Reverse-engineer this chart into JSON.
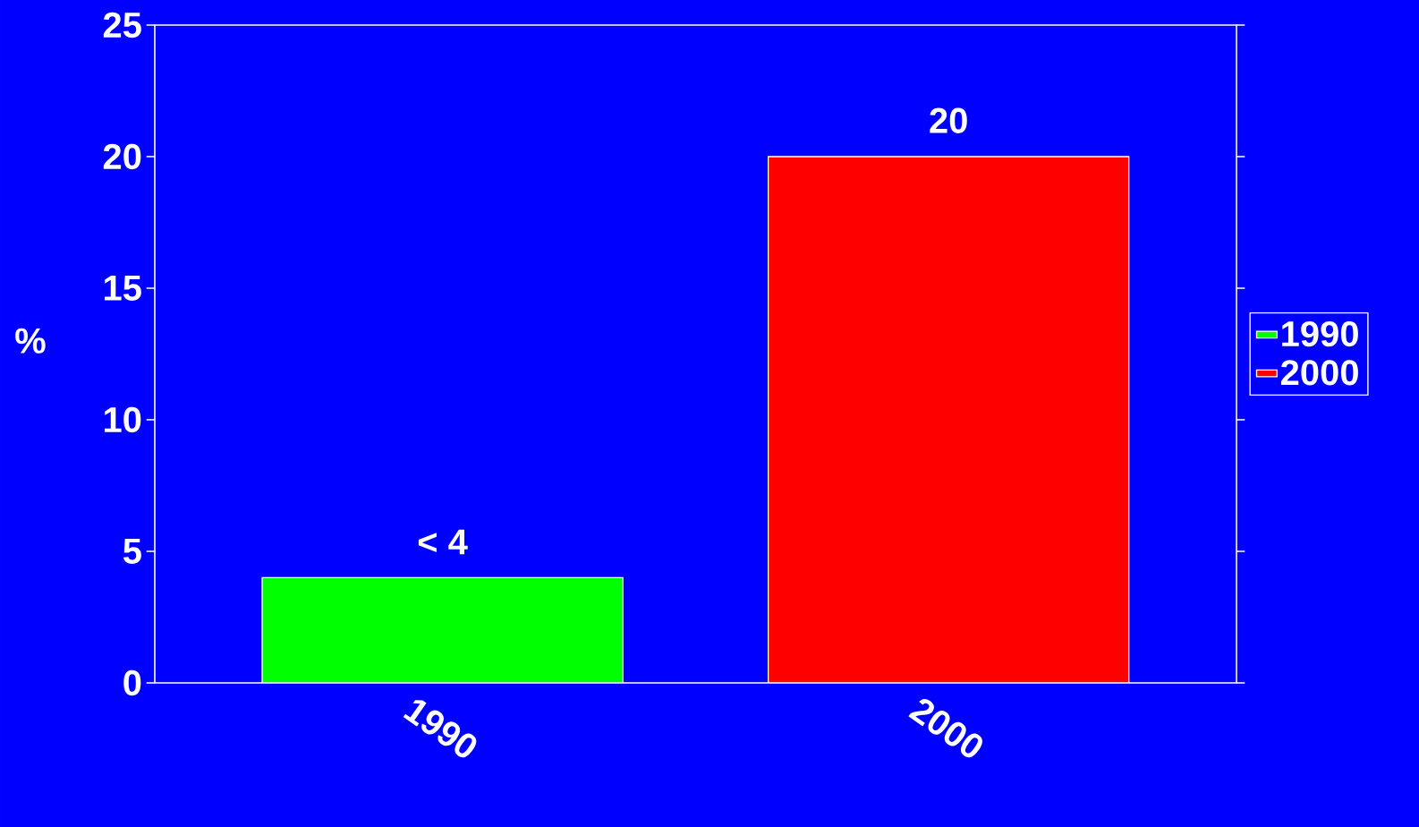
{
  "chart_data": {
    "type": "bar",
    "ylabel": "%",
    "categories": [
      "1990",
      "2000"
    ],
    "series": [
      {
        "name": "1990",
        "color": "#00ff00",
        "values": [
          4,
          null
        ],
        "value_labels": [
          "< 4",
          null
        ]
      },
      {
        "name": "2000",
        "color": "#ff0000",
        "values": [
          null,
          20
        ],
        "value_labels": [
          null,
          "20"
        ]
      }
    ],
    "ylim": [
      0,
      25
    ],
    "yticks": [
      0,
      5,
      10,
      15,
      20,
      25
    ],
    "legend": "right",
    "grid": false
  }
}
